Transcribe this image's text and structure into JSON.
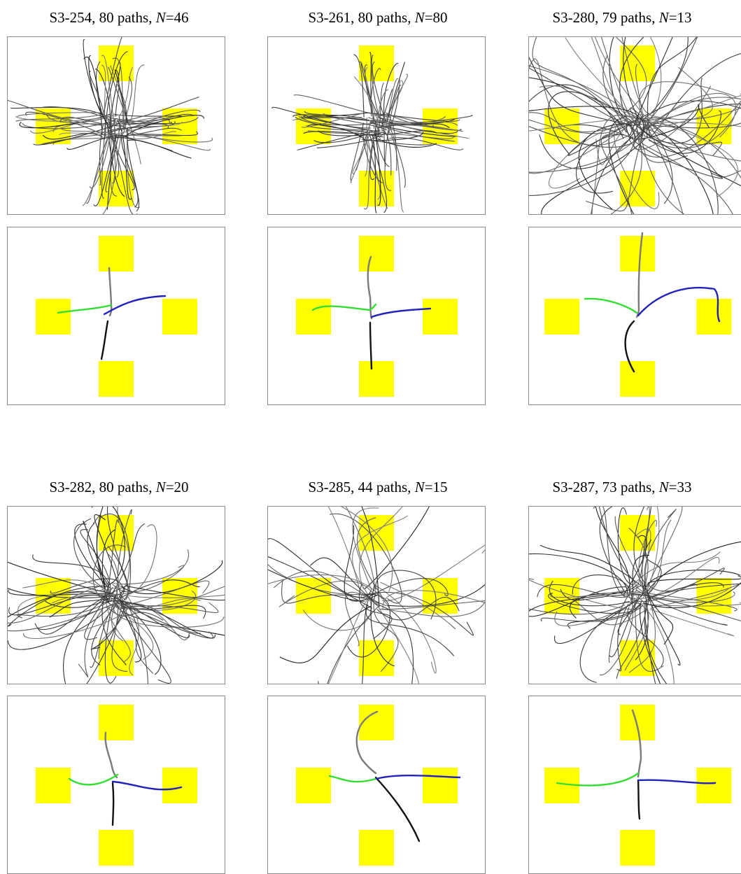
{
  "figure": {
    "columns": [
      {
        "id": "S3-254",
        "title_main": "S3-254, 80 paths, ",
        "n_label": "N",
        "n_value": "=46"
      },
      {
        "id": "S3-261",
        "title_main": "S3-261, 80 paths, ",
        "n_label": "N",
        "n_value": "=80"
      },
      {
        "id": "S3-280",
        "title_main": "S3-280, 79 paths, ",
        "n_label": "N",
        "n_value": "=13"
      },
      {
        "id": "S3-282",
        "title_main": "S3-282, 80 paths, ",
        "n_label": "N",
        "n_value": "=20"
      },
      {
        "id": "S3-285",
        "title_main": "S3-285, 44 paths, ",
        "n_label": "N",
        "n_value": "=15"
      },
      {
        "id": "S3-287",
        "title_main": "S3-287, 73 paths, ",
        "n_label": "N",
        "n_value": "=33"
      }
    ]
  },
  "colors": {
    "target": "#ffff00",
    "path": "#3a3a3a",
    "north_path": "#7a7a7a",
    "south_path": "#111111",
    "west_path": "#33dd33",
    "east_path": "#2222bb",
    "panel_border": "#8c8c8c"
  }
}
